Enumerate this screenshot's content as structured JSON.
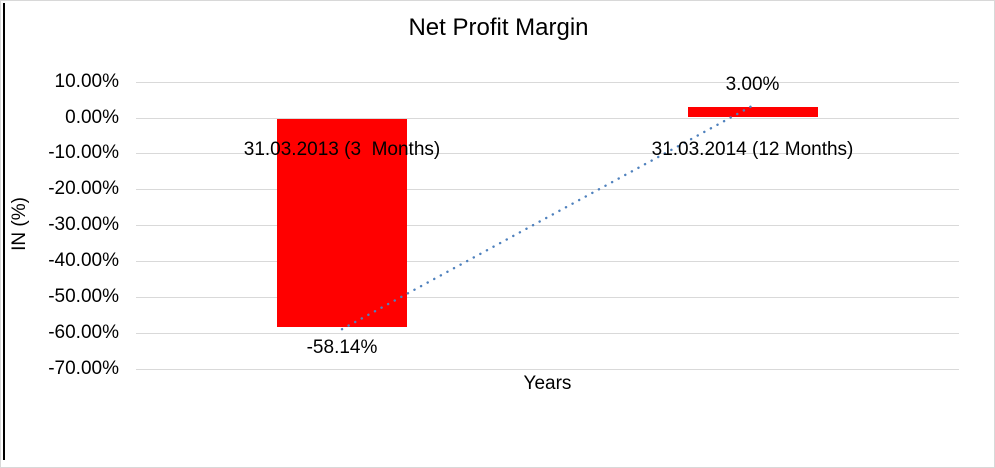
{
  "chart_data": {
    "type": "bar",
    "title": "Net Profit Margin",
    "xlabel": "Years",
    "ylabel": "IN (%)",
    "categories": [
      "31.03.2013 (3  Months)",
      "31.03.2014 (12 Months)"
    ],
    "values": [
      -58.14,
      3.0
    ],
    "data_labels": [
      "-58.14%",
      "3.00%"
    ],
    "series": [
      {
        "name": "Net Profit Margin",
        "values": [
          -58.14,
          3.0
        ]
      }
    ],
    "y_ticks": [
      {
        "label": "10.00%",
        "value": 10
      },
      {
        "label": "0.00%",
        "value": 0
      },
      {
        "label": "-10.00%",
        "value": -10
      },
      {
        "label": "-20.00%",
        "value": -20
      },
      {
        "label": "-30.00%",
        "value": -30
      },
      {
        "label": "-40.00%",
        "value": -40
      },
      {
        "label": "-50.00%",
        "value": -50
      },
      {
        "label": "-60.00%",
        "value": -60
      },
      {
        "label": "-70.00%",
        "value": -70
      }
    ],
    "ylim": [
      -70,
      10
    ],
    "grid": true,
    "legend": "none",
    "trendline": {
      "type": "linear",
      "style": "dotted",
      "from": -58.14,
      "to": 3.0
    },
    "colors": {
      "bar": "#FF0000",
      "trendline": "#4F81BD",
      "gridline": "#D9D9D9",
      "text": "#000000",
      "frame_border": "#D8D8D8",
      "left_rule": "#000000"
    }
  }
}
